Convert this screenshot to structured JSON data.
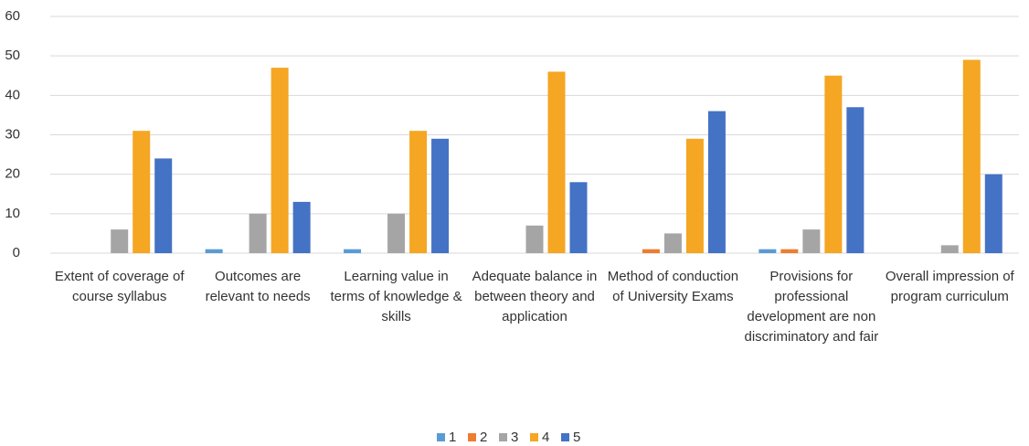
{
  "chart_data": {
    "type": "bar",
    "categories": [
      "Extent of coverage of course syllabus",
      "Outcomes are relevant to needs",
      "Learning value in terms of knowledge & skills",
      "Adequate balance in between theory and application",
      "Method of conduction of University Exams",
      "Provisions for professional development are non discriminatory and fair",
      "Overall impression of program curriculum"
    ],
    "series": [
      {
        "name": "1",
        "color": "#5b9bd5",
        "values": [
          0,
          1,
          1,
          0,
          0,
          1,
          0
        ]
      },
      {
        "name": "2",
        "color": "#ed7d31",
        "values": [
          0,
          0,
          0,
          0,
          1,
          1,
          0
        ]
      },
      {
        "name": "3",
        "color": "#a5a5a5",
        "values": [
          6,
          10,
          10,
          7,
          5,
          6,
          2
        ]
      },
      {
        "name": "4",
        "color": "#f5a623",
        "values": [
          31,
          47,
          31,
          46,
          29,
          45,
          49
        ]
      },
      {
        "name": "5",
        "color": "#4472c4",
        "values": [
          24,
          13,
          29,
          18,
          36,
          37,
          20
        ]
      }
    ],
    "ylim": [
      0,
      60
    ],
    "yticks": [
      0,
      10,
      20,
      30,
      40,
      50,
      60
    ],
    "grid": true,
    "legend": "bottom"
  }
}
